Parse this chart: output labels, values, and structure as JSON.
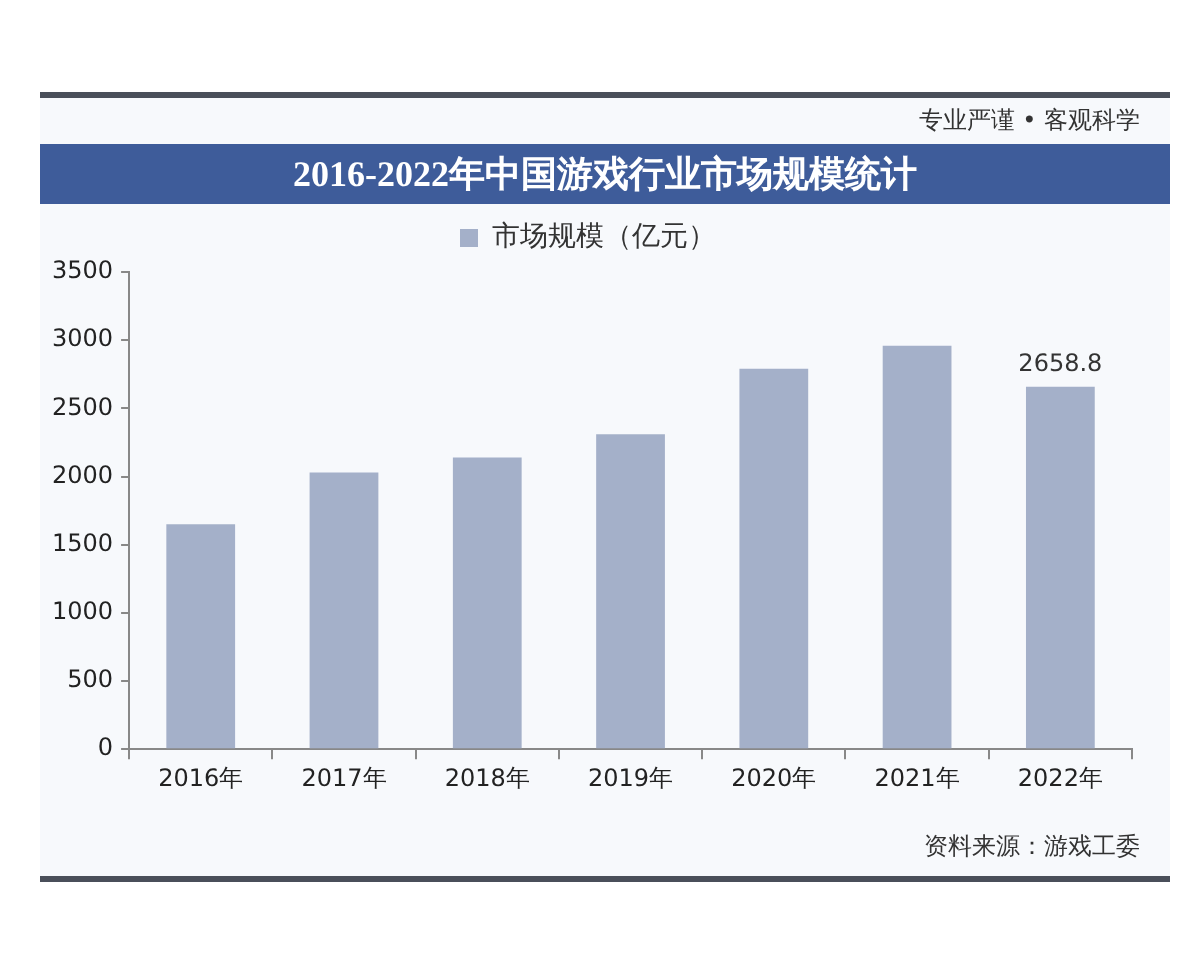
{
  "chart_data": {
    "type": "bar",
    "title": "2016-2022年中国游戏行业市场规模统计",
    "categories": [
      "2016年",
      "2017年",
      "2018年",
      "2019年",
      "2020年",
      "2021年",
      "2022年"
    ],
    "series": [
      {
        "name": "市场规模（亿元）",
        "color": "#a4b0c9",
        "values": [
          1650,
          2030,
          2140,
          2310,
          2790,
          2960,
          2658.8
        ],
        "value_labels": [
          null,
          null,
          null,
          null,
          null,
          null,
          "2658.8"
        ]
      }
    ],
    "ylim": [
      0,
      3500
    ],
    "yticks": [
      0,
      500,
      1000,
      1500,
      2000,
      2500,
      3000,
      3500
    ],
    "legend": "top",
    "annotations": [
      "专业严谨 • 客观科学",
      "资料来源：游戏工委"
    ]
  }
}
